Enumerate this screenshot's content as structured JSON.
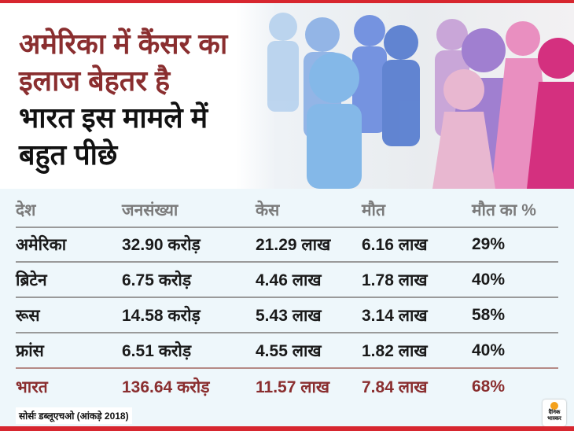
{
  "headline": {
    "line1": "अमेरिका में कैंसर का",
    "line2": "इलाज बेहतर है",
    "line3": "भारत इस मामले में",
    "line4": "बहुत पीछे"
  },
  "colors": {
    "accent_red": "#d7262f",
    "maroon": "#8a2e2f",
    "table_bg": "#eef7fb"
  },
  "chart_data": {
    "type": "table",
    "title": "अमेरिका में कैंसर का इलाज बेहतर है भारत इस मामले में बहुत पीछे",
    "columns": [
      "देश",
      "जनसंख्या",
      "केस",
      "मौत",
      "मौत का %"
    ],
    "rows": [
      [
        "अमेरिका",
        "32.90 करोड़",
        "21.29 लाख",
        "6.16 लाख",
        "29%"
      ],
      [
        "ब्रिटेन",
        "6.75 करोड़",
        "4.46 लाख",
        "1.78 लाख",
        "40%"
      ],
      [
        "रूस",
        "14.58 करोड़",
        "5.43 लाख",
        "3.14 लाख",
        "58%"
      ],
      [
        "फ्रांस",
        "6.51 करोड़",
        "4.55 लाख",
        "1.82 लाख",
        "40%"
      ],
      [
        "भारत",
        "136.64 करोड़",
        "11.57 लाख",
        "7.84 लाख",
        "68%"
      ]
    ]
  },
  "source": "सोर्सः डब्लूएचओ (आंकड़े 2018)",
  "logo": {
    "line1": "दैनिक",
    "line2": "भास्कर"
  }
}
